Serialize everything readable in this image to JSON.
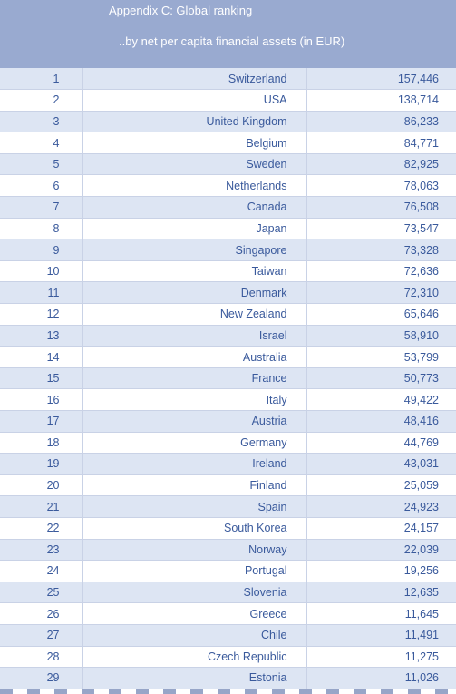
{
  "header": {
    "title": "Appendix C: Global ranking",
    "subtitle": "..by net per capita financial assets (in EUR)"
  },
  "rows": [
    {
      "rank": "1",
      "country": "Switzerland",
      "value": "157,446"
    },
    {
      "rank": "2",
      "country": "USA",
      "value": "138,714"
    },
    {
      "rank": "3",
      "country": "United Kingdom",
      "value": "86,233"
    },
    {
      "rank": "4",
      "country": "Belgium",
      "value": "84,771"
    },
    {
      "rank": "5",
      "country": "Sweden",
      "value": "82,925"
    },
    {
      "rank": "6",
      "country": "Netherlands",
      "value": "78,063"
    },
    {
      "rank": "7",
      "country": "Canada",
      "value": "76,508"
    },
    {
      "rank": "8",
      "country": "Japan",
      "value": "73,547"
    },
    {
      "rank": "9",
      "country": "Singapore",
      "value": "73,328"
    },
    {
      "rank": "10",
      "country": "Taiwan",
      "value": "72,636"
    },
    {
      "rank": "11",
      "country": "Denmark",
      "value": "72,310"
    },
    {
      "rank": "12",
      "country": "New Zealand",
      "value": "65,646"
    },
    {
      "rank": "13",
      "country": "Israel",
      "value": "58,910"
    },
    {
      "rank": "14",
      "country": "Australia",
      "value": "53,799"
    },
    {
      "rank": "15",
      "country": "France",
      "value": "50,773"
    },
    {
      "rank": "16",
      "country": "Italy",
      "value": "49,422"
    },
    {
      "rank": "17",
      "country": "Austria",
      "value": "48,416"
    },
    {
      "rank": "18",
      "country": "Germany",
      "value": "44,769"
    },
    {
      "rank": "19",
      "country": "Ireland",
      "value": "43,031"
    },
    {
      "rank": "20",
      "country": "Finland",
      "value": "25,059"
    },
    {
      "rank": "21",
      "country": "Spain",
      "value": "24,923"
    },
    {
      "rank": "22",
      "country": "South Korea",
      "value": "24,157"
    },
    {
      "rank": "23",
      "country": "Norway",
      "value": "22,039"
    },
    {
      "rank": "24",
      "country": "Portugal",
      "value": "19,256"
    },
    {
      "rank": "25",
      "country": "Slovenia",
      "value": "12,635"
    },
    {
      "rank": "26",
      "country": "Greece",
      "value": "11,645"
    },
    {
      "rank": "27",
      "country": "Chile",
      "value": "11,491"
    },
    {
      "rank": "28",
      "country": "Czech Republic",
      "value": "11,275"
    },
    {
      "rank": "29",
      "country": "Estonia",
      "value": "11,026"
    }
  ],
  "colors": {
    "header_bg": "#99aad0",
    "row_stripe": "#dde5f3",
    "text": "#3a5a9c"
  }
}
